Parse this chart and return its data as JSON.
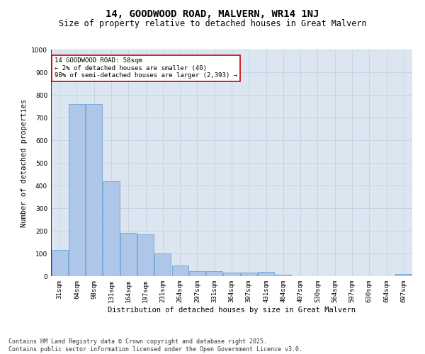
{
  "title": "14, GOODWOOD ROAD, MALVERN, WR14 1NJ",
  "subtitle": "Size of property relative to detached houses in Great Malvern",
  "xlabel": "Distribution of detached houses by size in Great Malvern",
  "ylabel": "Number of detached properties",
  "categories": [
    "31sqm",
    "64sqm",
    "98sqm",
    "131sqm",
    "164sqm",
    "197sqm",
    "231sqm",
    "264sqm",
    "297sqm",
    "331sqm",
    "364sqm",
    "397sqm",
    "431sqm",
    "464sqm",
    "497sqm",
    "530sqm",
    "564sqm",
    "597sqm",
    "630sqm",
    "664sqm",
    "697sqm"
  ],
  "values": [
    115,
    760,
    760,
    420,
    190,
    185,
    100,
    48,
    22,
    22,
    15,
    15,
    20,
    5,
    0,
    0,
    0,
    0,
    0,
    0,
    8
  ],
  "bar_color": "#aec6e8",
  "bar_edge_color": "#5b9bd5",
  "highlight_line_color": "#cc0000",
  "annotation_text": "14 GOODWOOD ROAD: 58sqm\n← 2% of detached houses are smaller (40)\n98% of semi-detached houses are larger (2,393) →",
  "annotation_box_color": "#ffffff",
  "annotation_box_edge_color": "#cc0000",
  "ylim": [
    0,
    1000
  ],
  "yticks": [
    0,
    100,
    200,
    300,
    400,
    500,
    600,
    700,
    800,
    900,
    1000
  ],
  "grid_color": "#c8d4e3",
  "background_color": "#dce6f0",
  "footer_line1": "Contains HM Land Registry data © Crown copyright and database right 2025.",
  "footer_line2": "Contains public sector information licensed under the Open Government Licence v3.0.",
  "title_fontsize": 10,
  "subtitle_fontsize": 8.5,
  "axis_label_fontsize": 7.5,
  "tick_fontsize": 6.5,
  "annotation_fontsize": 6.5,
  "footer_fontsize": 6
}
